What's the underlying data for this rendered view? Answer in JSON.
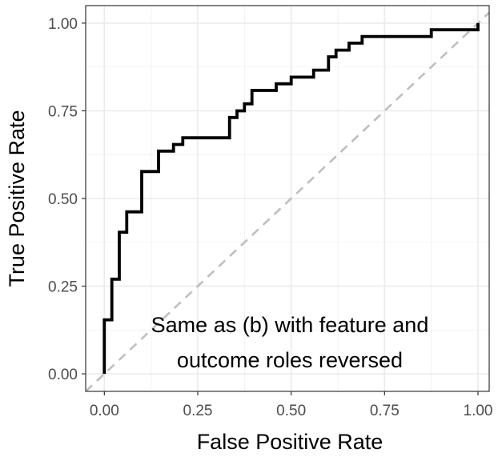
{
  "chart_data": {
    "type": "line",
    "xlabel": "False Positive Rate",
    "ylabel": "True Positive Rate",
    "xlim": [
      -0.05,
      1.03
    ],
    "ylim": [
      -0.05,
      1.05
    ],
    "x_ticks": [
      0.0,
      0.25,
      0.5,
      0.75,
      1.0
    ],
    "y_ticks": [
      0.0,
      0.25,
      0.5,
      0.75,
      1.0
    ],
    "x_tick_labels": [
      "0.00",
      "0.25",
      "0.50",
      "0.75",
      "1.00"
    ],
    "y_tick_labels": [
      "0.00",
      "0.25",
      "0.50",
      "0.75",
      "1.00"
    ],
    "grid": true,
    "annotation_lines": [
      "Same as (b) with feature and",
      "outcome roles reversed"
    ],
    "series": [
      {
        "color": "#000000",
        "style": "step",
        "x": [
          0.0,
          0.0,
          0.02,
          0.02,
          0.04,
          0.04,
          0.06,
          0.06,
          0.1,
          0.1,
          0.145,
          0.145,
          0.185,
          0.185,
          0.21,
          0.21,
          0.335,
          0.335,
          0.355,
          0.355,
          0.375,
          0.375,
          0.395,
          0.395,
          0.46,
          0.46,
          0.5,
          0.5,
          0.56,
          0.56,
          0.6,
          0.6,
          0.62,
          0.62,
          0.655,
          0.655,
          0.69,
          0.69,
          0.875,
          0.875,
          1.0,
          1.0
        ],
        "y": [
          0.0,
          0.154,
          0.154,
          0.27,
          0.27,
          0.404,
          0.404,
          0.462,
          0.462,
          0.577,
          0.577,
          0.635,
          0.635,
          0.654,
          0.654,
          0.673,
          0.673,
          0.731,
          0.731,
          0.75,
          0.75,
          0.77,
          0.77,
          0.808,
          0.808,
          0.827,
          0.827,
          0.846,
          0.846,
          0.866,
          0.866,
          0.904,
          0.904,
          0.923,
          0.923,
          0.943,
          0.943,
          0.962,
          0.962,
          0.981,
          0.981,
          1.0
        ]
      },
      {
        "color": "#bfbfbf",
        "style": "dashed",
        "x": [
          -0.05,
          1.03
        ],
        "y": [
          -0.05,
          1.03
        ]
      }
    ]
  }
}
